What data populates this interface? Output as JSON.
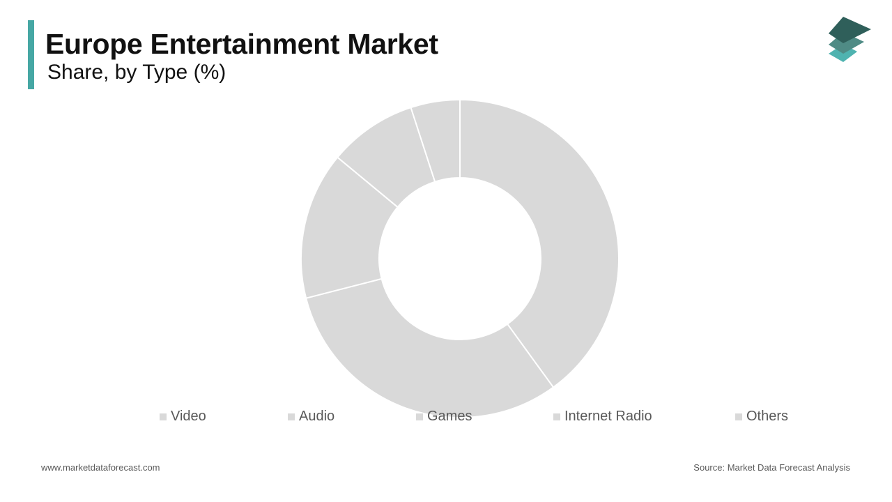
{
  "header": {
    "title": "Europe Entertainment Market",
    "subtitle": "Share, by Type (%)",
    "accent_color": "#46a7a4"
  },
  "logo": {
    "icon": "stacked-layers-icon",
    "colors": [
      "#2f5f5a",
      "#4f8b85",
      "#4fb3b0"
    ]
  },
  "chart_data": {
    "type": "pie",
    "variant": "donut",
    "categories": [
      "Video",
      "Audio",
      "Games",
      "Internet Radio",
      "Others"
    ],
    "values": [
      40,
      31,
      15,
      9,
      5
    ],
    "slice_color": "#d9d9d9",
    "separator_color": "#ffffff",
    "legend_position": "bottom"
  },
  "footer": {
    "website": "www.marketdataforecast.com",
    "source": "Source: Market Data Forecast Analysis"
  }
}
